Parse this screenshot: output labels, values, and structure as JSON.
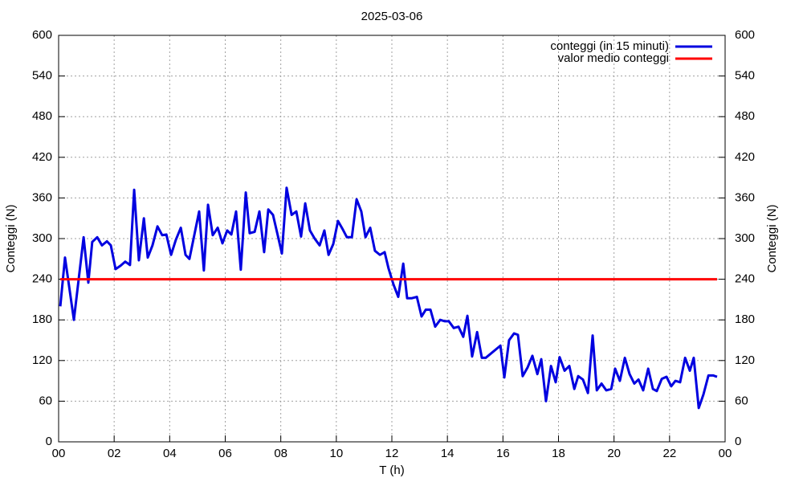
{
  "chart_data": {
    "type": "line",
    "title": "2025-03-06",
    "xlabel": "T (h)",
    "ylabel": "Conteggi (N)",
    "y2label": "Conteggi (N)",
    "xlim": [
      0,
      24
    ],
    "xticks": [
      {
        "value": 0,
        "label": "00"
      },
      {
        "value": 2,
        "label": "02"
      },
      {
        "value": 4,
        "label": "04"
      },
      {
        "value": 6,
        "label": "06"
      },
      {
        "value": 8,
        "label": "08"
      },
      10,
      12,
      14,
      16,
      18,
      20,
      22,
      {
        "value": 24,
        "label": "00"
      }
    ],
    "ylim": [
      0,
      600
    ],
    "yticks": [
      0,
      60,
      120,
      180,
      240,
      300,
      360,
      420,
      480,
      540,
      600
    ],
    "y2lim": [
      0,
      600
    ],
    "y2ticks": [
      0,
      60,
      120,
      180,
      240,
      300,
      360,
      420,
      480,
      540,
      600
    ],
    "grid": true,
    "legend": "top-right",
    "series": [
      {
        "name": "conteggi (in 15 minuti)",
        "color": "#0000e0",
        "x": [
          0.06,
          0.23,
          0.55,
          0.9,
          1.07,
          1.21,
          1.39,
          1.56,
          1.74,
          1.88,
          2.05,
          2.23,
          2.4,
          2.57,
          2.72,
          2.89,
          3.07,
          3.21,
          3.38,
          3.56,
          3.73,
          3.88,
          4.05,
          4.22,
          4.4,
          4.57,
          4.71,
          4.89,
          5.06,
          5.23,
          5.38,
          5.55,
          5.73,
          5.9,
          6.07,
          6.22,
          6.39,
          6.56,
          6.74,
          6.88,
          7.06,
          7.23,
          7.4,
          7.55,
          7.72,
          7.89,
          8.04,
          8.21,
          8.39,
          8.56,
          8.73,
          8.88,
          9.05,
          9.22,
          9.4,
          9.57,
          9.72,
          9.89,
          10.06,
          10.24,
          10.38,
          10.56,
          10.73,
          10.9,
          11.05,
          11.22,
          11.39,
          11.57,
          11.74,
          11.88,
          12.06,
          12.23,
          12.41,
          12.55,
          12.72,
          12.9,
          13.07,
          13.22,
          13.39,
          13.56,
          13.74,
          13.91,
          14.05,
          14.23,
          14.4,
          14.57,
          14.72,
          14.89,
          15.07,
          15.24,
          15.38,
          15.91,
          16.05,
          16.22,
          16.4,
          16.54,
          16.71,
          16.89,
          17.06,
          17.24,
          17.38,
          17.55,
          17.73,
          17.9,
          18.04,
          18.22,
          18.39,
          18.57,
          18.71,
          18.88,
          19.06,
          19.23,
          19.38,
          19.55,
          19.72,
          19.9,
          20.04,
          20.21,
          20.39,
          20.56,
          20.73,
          20.88,
          21.05,
          21.23,
          21.4,
          21.54,
          21.72,
          21.89,
          22.06,
          22.21,
          22.38,
          22.56,
          22.73,
          22.87,
          23.05,
          23.22,
          23.4,
          23.57,
          23.71
        ],
        "values": [
          200,
          272,
          180,
          302,
          235,
          295,
          302,
          290,
          296,
          290,
          255,
          260,
          266,
          261,
          372,
          268,
          330,
          272,
          290,
          318,
          305,
          306,
          276,
          298,
          316,
          276,
          270,
          306,
          340,
          253,
          350,
          305,
          316,
          293,
          312,
          306,
          340,
          254,
          368,
          308,
          310,
          340,
          280,
          343,
          335,
          305,
          278,
          375,
          335,
          340,
          303,
          352,
          312,
          300,
          290,
          312,
          276,
          292,
          326,
          313,
          302,
          302,
          358,
          340,
          302,
          316,
          282,
          276,
          280,
          256,
          232,
          214,
          263,
          212,
          212,
          214,
          185,
          195,
          195,
          170,
          180,
          178,
          178,
          168,
          170,
          155,
          186,
          126,
          162,
          124,
          124,
          142,
          95,
          150,
          160,
          158,
          97,
          110,
          127,
          100,
          122,
          60,
          112,
          88,
          125,
          105,
          112,
          78,
          97,
          92,
          72,
          157,
          76,
          86,
          76,
          78,
          108,
          90,
          124,
          100,
          86,
          92,
          76,
          108,
          78,
          75,
          93,
          96,
          82,
          90,
          88,
          124,
          105,
          124,
          50,
          70,
          98,
          98,
          96
        ]
      },
      {
        "name": "valor medio conteggi",
        "color": "#ff0000",
        "x": [
          0.06,
          23.71
        ],
        "values": [
          240,
          240
        ]
      }
    ]
  }
}
